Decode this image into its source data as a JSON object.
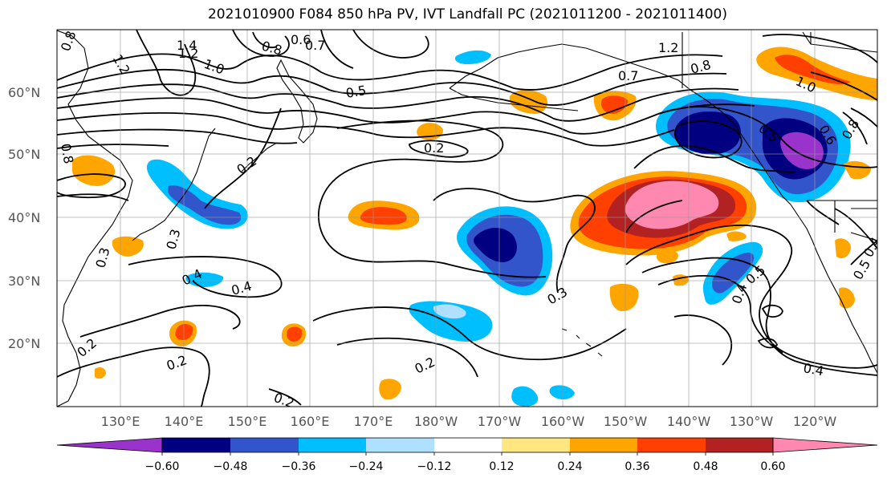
{
  "title": "2021010900 F084 850 hPa PV, IVT Landfall PC (2021011200 - 2021011400)",
  "lat_labels": [
    "60°N",
    "50°N",
    "40°N",
    "30°N",
    "20°N"
  ],
  "lon_labels": [
    "130°E",
    "140°E",
    "150°E",
    "160°E",
    "170°E",
    "180°W",
    "170°W",
    "160°W",
    "150°W",
    "140°W",
    "130°W",
    "120°W"
  ],
  "colorbar": {
    "tick_labels": [
      "−0.60",
      "−0.48",
      "−0.36",
      "−0.24",
      "−0.12",
      "0.12",
      "0.24",
      "0.36",
      "0.48",
      "0.60"
    ],
    "colors": [
      "#9933cc",
      "#000080",
      "#3355cc",
      "#00bfff",
      "#b0e0ff",
      "#ffffff",
      "#ffe680",
      "#ffa500",
      "#ff4000",
      "#b22222",
      "#ff88b0"
    ]
  },
  "contour_labels": [
    "1.4",
    "1.2",
    "1.0",
    "0.8",
    "0.6",
    "0.7",
    "1.2",
    "0.8",
    "0.7",
    "1.0",
    "0.5",
    "0.6",
    "0.8",
    "0.5",
    "0.2",
    "0.2",
    "0.3",
    "0.3",
    "0.4",
    "0.3",
    "0.4",
    "0.2",
    "0.2",
    "0.2",
    "0.2",
    "0.4",
    "0.5",
    "0.4",
    "0.8",
    "0.8",
    "1.2",
    "0.5",
    "0.4"
  ]
}
